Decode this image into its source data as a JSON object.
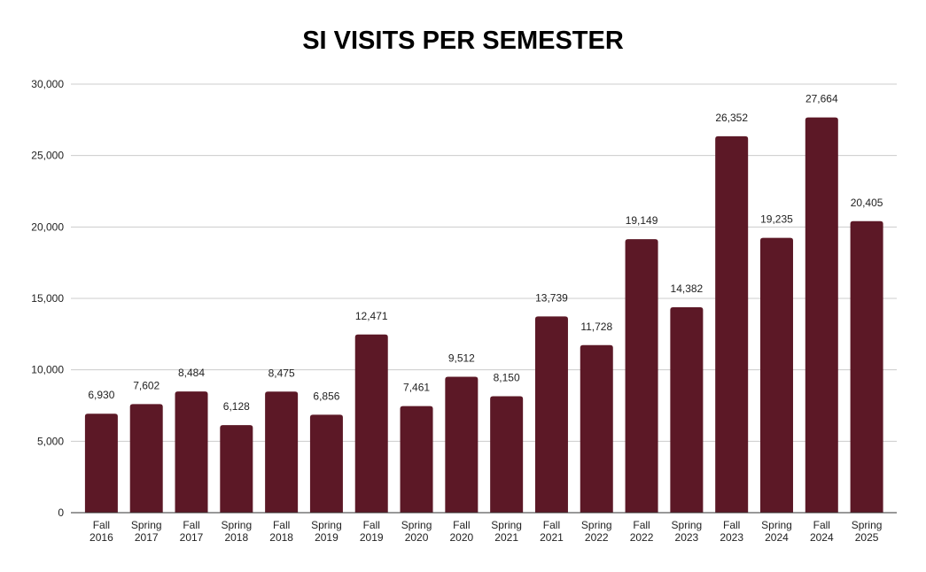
{
  "chart_data": {
    "type": "bar",
    "title": "SI VISITS PER SEMESTER",
    "xlabel": "",
    "ylabel": "",
    "ylim": [
      0,
      30000
    ],
    "yticks": [
      0,
      5000,
      10000,
      15000,
      20000,
      25000,
      30000
    ],
    "ytick_labels": [
      "0",
      "5,000",
      "10,000",
      "15,000",
      "20,000",
      "25,000",
      "30,000"
    ],
    "grid": true,
    "bar_color": "#5c1826",
    "categories": [
      [
        "Fall",
        "2016"
      ],
      [
        "Spring",
        "2017"
      ],
      [
        "Fall",
        "2017"
      ],
      [
        "Spring",
        "2018"
      ],
      [
        "Fall",
        "2018"
      ],
      [
        "Spring",
        "2019"
      ],
      [
        "Fall",
        "2019"
      ],
      [
        "Spring",
        "2020"
      ],
      [
        "Fall",
        "2020"
      ],
      [
        "Spring",
        "2021"
      ],
      [
        "Fall",
        "2021"
      ],
      [
        "Spring",
        "2022"
      ],
      [
        "Fall",
        "2022"
      ],
      [
        "Spring",
        "2023"
      ],
      [
        "Fall",
        "2023"
      ],
      [
        "Spring",
        "2024"
      ],
      [
        "Fall",
        "2024"
      ],
      [
        "Spring",
        "2025"
      ]
    ],
    "values": [
      6930,
      7602,
      8484,
      6128,
      8475,
      6856,
      12471,
      7461,
      9512,
      8150,
      13739,
      11728,
      19149,
      14382,
      26352,
      19235,
      27664,
      20405
    ],
    "data_labels": [
      "6,930",
      "7,602",
      "8,484",
      "6,128",
      "8,475",
      "6,856",
      "12,471",
      "7,461",
      "9,512",
      "8,150",
      "13,739",
      "11,728",
      "19,149",
      "14,382",
      "26,352",
      "19,235",
      "27,664",
      "20,405"
    ]
  }
}
